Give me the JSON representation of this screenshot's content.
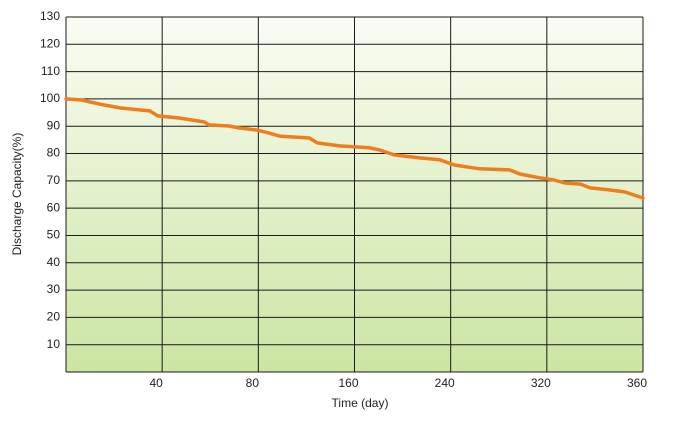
{
  "chart_data": {
    "type": "line",
    "x_label": "Time (day)",
    "y_label": "Discharge  Capacity(%)",
    "xlim": [
      0,
      360
    ],
    "xticks": [
      40,
      80,
      160,
      240,
      320,
      360
    ],
    "ylim": [
      0,
      130
    ],
    "yticks": [
      10,
      20,
      30,
      40,
      50,
      60,
      70,
      80,
      90,
      100,
      110,
      120,
      130
    ],
    "grid": true,
    "series": [
      {
        "color": "#ee7d1e",
        "x": [
          0,
          6.6,
          9.9,
          15.7,
          22.4,
          34.8,
          38.2,
          47,
          57.4,
          59.5,
          67.8,
          72,
          79.5,
          89,
          97.5,
          122.5,
          129,
          147.5,
          172.5,
          181,
          193,
          214,
          231,
          243,
          264,
          289,
          297.5,
          314,
          323,
          327.5,
          334,
          338,
          346,
          352.5,
          360
        ],
        "values": [
          100,
          99.6,
          98.9,
          97.8,
          96.7,
          95.6,
          93.8,
          93.0,
          91.6,
          90.5,
          90.1,
          89.4,
          88.6,
          87.5,
          86.4,
          85.7,
          83.9,
          82.8,
          82.1,
          81.3,
          79.5,
          78.4,
          77.7,
          75.8,
          74.4,
          74.0,
          72.5,
          71.1,
          70.3,
          69.2,
          68.8,
          67.4,
          66.7,
          65.9,
          63.7
        ]
      }
    ]
  }
}
